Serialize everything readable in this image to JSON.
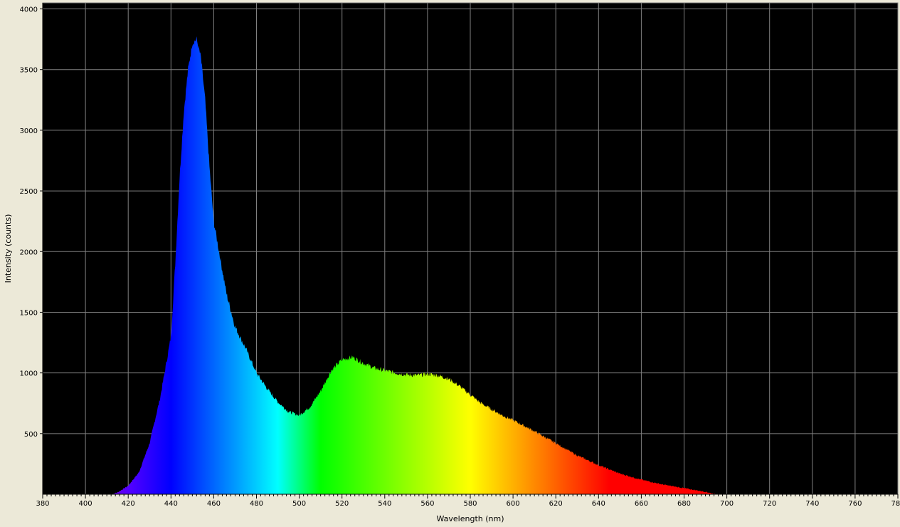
{
  "chart_data": {
    "type": "area",
    "title": "",
    "xlabel": "Wavelength (nm)",
    "ylabel": "Intensity (counts)",
    "xlim": [
      380,
      780
    ],
    "ylim": [
      0,
      4050
    ],
    "x_ticks": [
      380,
      400,
      420,
      440,
      460,
      480,
      500,
      520,
      540,
      560,
      580,
      600,
      620,
      640,
      660,
      680,
      700,
      720,
      740,
      760,
      780
    ],
    "y_ticks": [
      500,
      1000,
      1500,
      2000,
      2500,
      3000,
      3500,
      4000
    ],
    "grid": true,
    "background_color": "#000000",
    "grid_color": "#808080",
    "fill": "visible-spectrum wavelength colors",
    "series": [
      {
        "x": [
          412,
          415,
          420,
          425,
          430,
          435,
          440,
          442,
          444,
          446,
          448,
          450,
          452,
          454,
          456,
          458,
          460,
          463,
          466,
          470,
          475,
          480,
          485,
          490,
          495,
          500,
          505,
          510,
          515,
          520,
          525,
          530,
          535,
          540,
          545,
          550,
          555,
          560,
          565,
          570,
          575,
          580,
          585,
          590,
          595,
          600,
          610,
          620,
          630,
          640,
          650,
          660,
          670,
          680,
          690,
          695
        ],
        "y": [
          0,
          15,
          70,
          180,
          420,
          800,
          1300,
          1900,
          2600,
          3150,
          3500,
          3720,
          3750,
          3600,
          3250,
          2700,
          2250,
          1950,
          1650,
          1380,
          1200,
          1000,
          870,
          760,
          680,
          650,
          720,
          850,
          1020,
          1110,
          1130,
          1080,
          1040,
          1020,
          1000,
          985,
          980,
          990,
          980,
          950,
          890,
          820,
          750,
          700,
          650,
          610,
          520,
          420,
          320,
          240,
          170,
          120,
          80,
          50,
          20,
          0
        ]
      }
    ]
  }
}
